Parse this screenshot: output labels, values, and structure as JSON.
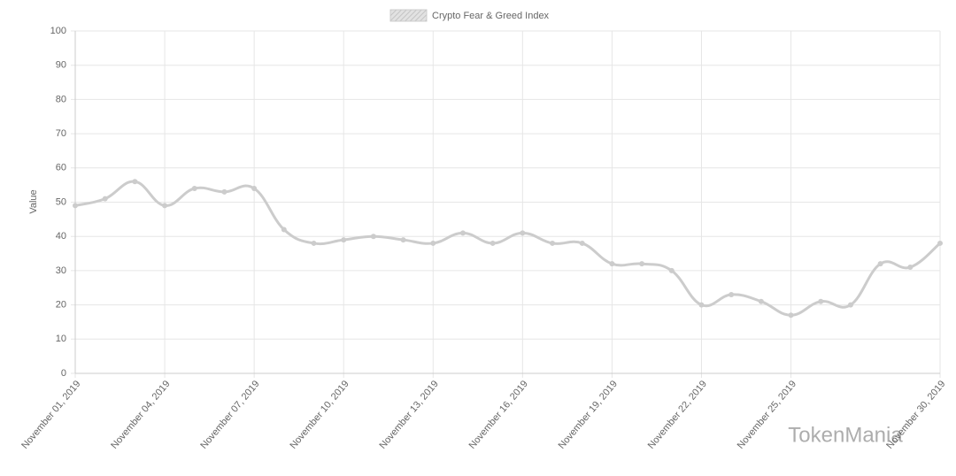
{
  "chart_data": {
    "type": "line",
    "legend_label": "Crypto Fear & Greed Index",
    "y_label": "Value",
    "watermark": "TokenMania",
    "categories": [
      "November 01, 2019",
      null,
      null,
      "November 04, 2019",
      null,
      null,
      "November 07, 2019",
      null,
      null,
      "November 10, 2019",
      null,
      null,
      "November 13, 2019",
      null,
      null,
      "November 16, 2019",
      null,
      null,
      "November 19, 2019",
      null,
      null,
      "November 22, 2019",
      null,
      null,
      "November 25, 2019",
      null,
      null,
      null,
      null,
      "November 30, 2019"
    ],
    "series": [
      {
        "name": "Crypto Fear & Greed Index",
        "color": "#cccccc",
        "values": [
          49,
          51,
          56,
          49,
          54,
          53,
          54,
          42,
          38,
          39,
          40,
          39,
          38,
          41,
          38,
          41,
          38,
          38,
          32,
          32,
          30,
          20,
          23,
          21,
          17,
          21,
          20,
          32,
          31,
          38
        ]
      }
    ],
    "ylim": [
      0,
      100
    ],
    "yticks": [
      0,
      10,
      20,
      30,
      40,
      50,
      60,
      70,
      80,
      90,
      100
    ],
    "grid": true
  }
}
